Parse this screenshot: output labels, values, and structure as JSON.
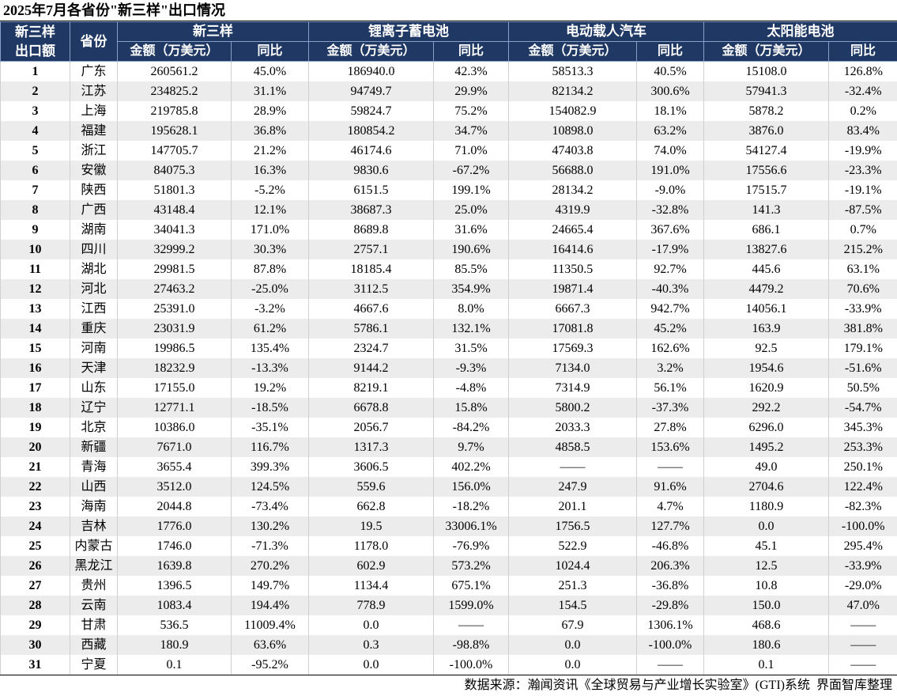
{
  "title": "2025年7月各省份\"新三样\"出口情况",
  "header": {
    "rank": [
      "新三样",
      "出口额"
    ],
    "province": "省份",
    "groups": [
      "新三样",
      "锂离子蓄电池",
      "电动载人汽车",
      "太阳能电池"
    ],
    "amount": "金额（万美元）",
    "yoy": "同比"
  },
  "table": {
    "rows": [
      [
        "1",
        "广东",
        "260561.2",
        "45.0%",
        "186940.0",
        "42.3%",
        "58513.3",
        "40.5%",
        "15108.0",
        "126.8%"
      ],
      [
        "2",
        "江苏",
        "234825.2",
        "31.1%",
        "94749.7",
        "29.9%",
        "82134.2",
        "300.6%",
        "57941.3",
        "-32.4%"
      ],
      [
        "3",
        "上海",
        "219785.8",
        "28.9%",
        "59824.7",
        "75.2%",
        "154082.9",
        "18.1%",
        "5878.2",
        "0.2%"
      ],
      [
        "4",
        "福建",
        "195628.1",
        "36.8%",
        "180854.2",
        "34.7%",
        "10898.0",
        "63.2%",
        "3876.0",
        "83.4%"
      ],
      [
        "5",
        "浙江",
        "147705.7",
        "21.2%",
        "46174.6",
        "71.0%",
        "47403.8",
        "74.0%",
        "54127.4",
        "-19.9%"
      ],
      [
        "6",
        "安徽",
        "84075.3",
        "16.3%",
        "9830.6",
        "-67.2%",
        "56688.0",
        "191.0%",
        "17556.6",
        "-23.3%"
      ],
      [
        "7",
        "陕西",
        "51801.3",
        "-5.2%",
        "6151.5",
        "199.1%",
        "28134.2",
        "-9.0%",
        "17515.7",
        "-19.1%"
      ],
      [
        "8",
        "广西",
        "43148.4",
        "12.1%",
        "38687.3",
        "25.0%",
        "4319.9",
        "-32.8%",
        "141.3",
        "-87.5%"
      ],
      [
        "9",
        "湖南",
        "34041.3",
        "171.0%",
        "8689.8",
        "31.6%",
        "24665.4",
        "367.6%",
        "686.1",
        "0.7%"
      ],
      [
        "10",
        "四川",
        "32999.2",
        "30.3%",
        "2757.1",
        "190.6%",
        "16414.6",
        "-17.9%",
        "13827.6",
        "215.2%"
      ],
      [
        "11",
        "湖北",
        "29981.5",
        "87.8%",
        "18185.4",
        "85.5%",
        "11350.5",
        "92.7%",
        "445.6",
        "63.1%"
      ],
      [
        "12",
        "河北",
        "27463.2",
        "-25.0%",
        "3112.5",
        "354.9%",
        "19871.4",
        "-40.3%",
        "4479.2",
        "70.6%"
      ],
      [
        "13",
        "江西",
        "25391.0",
        "-3.2%",
        "4667.6",
        "8.0%",
        "6667.3",
        "942.7%",
        "14056.1",
        "-33.9%"
      ],
      [
        "14",
        "重庆",
        "23031.9",
        "61.2%",
        "5786.1",
        "132.1%",
        "17081.8",
        "45.2%",
        "163.9",
        "381.8%"
      ],
      [
        "15",
        "河南",
        "19986.5",
        "135.4%",
        "2324.7",
        "31.5%",
        "17569.3",
        "162.6%",
        "92.5",
        "179.1%"
      ],
      [
        "16",
        "天津",
        "18232.9",
        "-13.3%",
        "9144.2",
        "-9.3%",
        "7134.0",
        "3.2%",
        "1954.6",
        "-51.6%"
      ],
      [
        "17",
        "山东",
        "17155.0",
        "19.2%",
        "8219.1",
        "-4.8%",
        "7314.9",
        "56.1%",
        "1620.9",
        "50.5%"
      ],
      [
        "18",
        "辽宁",
        "12771.1",
        "-18.5%",
        "6678.8",
        "15.8%",
        "5800.2",
        "-37.3%",
        "292.2",
        "-54.7%"
      ],
      [
        "19",
        "北京",
        "10386.0",
        "-35.1%",
        "2056.7",
        "-84.2%",
        "2033.3",
        "27.8%",
        "6296.0",
        "345.3%"
      ],
      [
        "20",
        "新疆",
        "7671.0",
        "116.7%",
        "1317.3",
        "9.7%",
        "4858.5",
        "153.6%",
        "1495.2",
        "253.3%"
      ],
      [
        "21",
        "青海",
        "3655.4",
        "399.3%",
        "3606.5",
        "402.2%",
        "——",
        "——",
        "49.0",
        "250.1%"
      ],
      [
        "22",
        "山西",
        "3512.0",
        "124.5%",
        "559.6",
        "156.0%",
        "247.9",
        "91.6%",
        "2704.6",
        "122.4%"
      ],
      [
        "23",
        "海南",
        "2044.8",
        "-73.4%",
        "662.8",
        "-18.2%",
        "201.1",
        "4.7%",
        "1180.9",
        "-82.3%"
      ],
      [
        "24",
        "吉林",
        "1776.0",
        "130.2%",
        "19.5",
        "33006.1%",
        "1756.5",
        "127.7%",
        "0.0",
        "-100.0%"
      ],
      [
        "25",
        "内蒙古",
        "1746.0",
        "-71.3%",
        "1178.0",
        "-76.9%",
        "522.9",
        "-46.8%",
        "45.1",
        "295.4%"
      ],
      [
        "26",
        "黑龙江",
        "1639.8",
        "270.2%",
        "602.9",
        "573.2%",
        "1024.4",
        "206.3%",
        "12.5",
        "-33.9%"
      ],
      [
        "27",
        "贵州",
        "1396.5",
        "149.7%",
        "1134.4",
        "675.1%",
        "251.3",
        "-36.8%",
        "10.8",
        "-29.0%"
      ],
      [
        "28",
        "云南",
        "1083.4",
        "194.4%",
        "778.9",
        "1599.0%",
        "154.5",
        "-29.8%",
        "150.0",
        "47.0%"
      ],
      [
        "29",
        "甘肃",
        "536.5",
        "11009.4%",
        "0.0",
        "——",
        "67.9",
        "1306.1%",
        "468.6",
        "——"
      ],
      [
        "30",
        "西藏",
        "180.9",
        "63.6%",
        "0.3",
        "-98.8%",
        "0.0",
        "-100.0%",
        "180.6",
        "——"
      ],
      [
        "31",
        "宁夏",
        "0.1",
        "-95.2%",
        "0.0",
        "-100.0%",
        "0.0",
        "——",
        "0.1",
        "——"
      ]
    ]
  },
  "footer": "数据来源：瀚闻资讯《全球贸易与产业增长实验室》(GTI)系统  界面智库整理"
}
